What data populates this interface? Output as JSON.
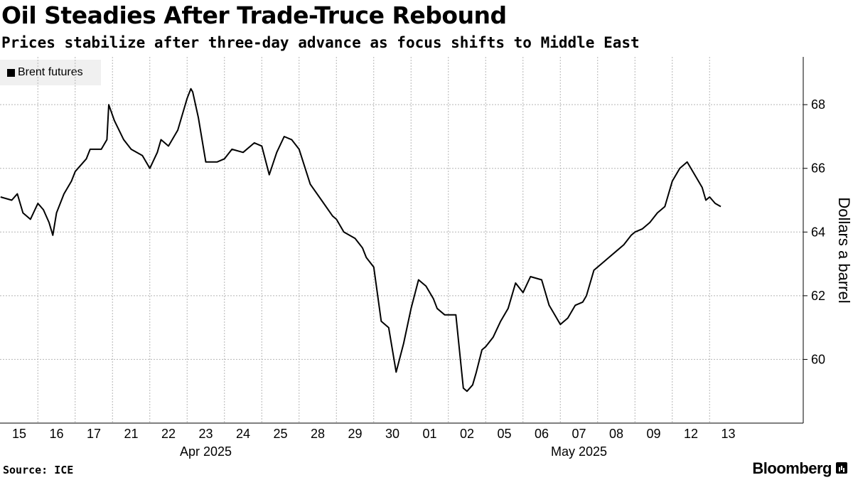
{
  "header": {
    "title": "Oil Steadies After Trade-Truce Rebound",
    "subtitle": "Prices stabilize after three-day advance as focus shifts to Middle East"
  },
  "footer": {
    "source": "Source: ICE",
    "brand": "Bloomberg"
  },
  "chart_data": {
    "type": "line",
    "title": "Oil Steadies After Trade-Truce Rebound",
    "subtitle": "Prices stabilize after three-day advance as focus shifts to Middle East",
    "xlabel": "",
    "ylabel": "Dollars a barrel",
    "ylim": [
      58,
      69.5
    ],
    "yticks": [
      60,
      62,
      64,
      66,
      68
    ],
    "y_axis_side": "right",
    "grid": "horizontal dotted",
    "legend": "top-left",
    "categories": [
      "15",
      "16",
      "17",
      "21",
      "22",
      "23",
      "24",
      "25",
      "28",
      "29",
      "30",
      "01",
      "02",
      "05",
      "06",
      "07",
      "08",
      "09",
      "12",
      "13"
    ],
    "month_labels": [
      {
        "label": "Apr 2025",
        "under_category": "23"
      },
      {
        "label": "May 2025",
        "under_category": "07"
      }
    ],
    "series": [
      {
        "name": "Brent futures",
        "color": "#000000",
        "x": [
          0,
          0.3,
          0.45,
          0.6,
          0.8,
          1.0,
          1.15,
          1.3,
          1.4,
          1.5,
          1.7,
          1.9,
          2.0,
          2.3,
          2.4,
          2.7,
          2.85,
          2.9,
          3.05,
          3.3,
          3.5,
          3.8,
          4.0,
          4.2,
          4.3,
          4.5,
          4.75,
          4.9,
          5.0,
          5.1,
          5.15,
          5.3,
          5.5,
          5.8,
          6.0,
          6.2,
          6.5,
          6.8,
          7.0,
          7.2,
          7.4,
          7.6,
          7.8,
          8.0,
          8.3,
          8.6,
          8.9,
          9.0,
          9.2,
          9.5,
          9.7,
          9.8,
          10.0,
          10.2,
          10.4,
          10.6,
          10.8,
          11.0,
          11.2,
          11.4,
          11.6,
          11.7,
          11.9,
          12.2,
          12.4,
          12.5,
          12.65,
          12.75,
          12.9,
          13.0,
          13.2,
          13.4,
          13.6,
          13.8,
          14.0,
          14.2,
          14.5,
          14.7,
          14.8,
          15.0,
          15.2,
          15.4,
          15.6,
          15.7,
          15.9,
          16.1,
          16.3,
          16.5,
          16.7,
          16.9,
          17.0,
          17.2,
          17.4,
          17.6,
          17.8,
          18.0,
          18.2,
          18.4,
          18.6,
          18.8,
          18.9,
          19.0,
          19.15,
          19.3
        ],
        "values": [
          65.1,
          65.0,
          65.2,
          64.6,
          64.4,
          64.9,
          64.7,
          64.3,
          63.9,
          64.6,
          65.2,
          65.6,
          65.9,
          66.3,
          66.6,
          66.6,
          66.9,
          68.0,
          67.5,
          66.9,
          66.6,
          66.4,
          66.0,
          66.5,
          66.9,
          66.7,
          67.2,
          67.8,
          68.2,
          68.5,
          68.4,
          67.6,
          66.2,
          66.2,
          66.3,
          66.6,
          66.5,
          66.8,
          66.7,
          65.8,
          66.5,
          67.0,
          66.9,
          66.6,
          65.5,
          65.0,
          64.5,
          64.4,
          64.0,
          63.8,
          63.5,
          63.2,
          62.9,
          61.2,
          61.0,
          59.6,
          60.5,
          61.6,
          62.5,
          62.3,
          61.9,
          61.6,
          61.4,
          61.4,
          59.1,
          59.0,
          59.2,
          59.6,
          60.3,
          60.4,
          60.7,
          61.2,
          61.6,
          62.4,
          62.1,
          62.6,
          62.5,
          61.7,
          61.5,
          61.1,
          61.3,
          61.7,
          61.8,
          62.0,
          62.8,
          63.0,
          63.2,
          63.4,
          63.6,
          63.9,
          64.0,
          64.1,
          64.3,
          64.6,
          64.8,
          65.6,
          66.0,
          66.2,
          65.8,
          65.4,
          65.0,
          65.1,
          64.9,
          64.8
        ]
      }
    ]
  }
}
